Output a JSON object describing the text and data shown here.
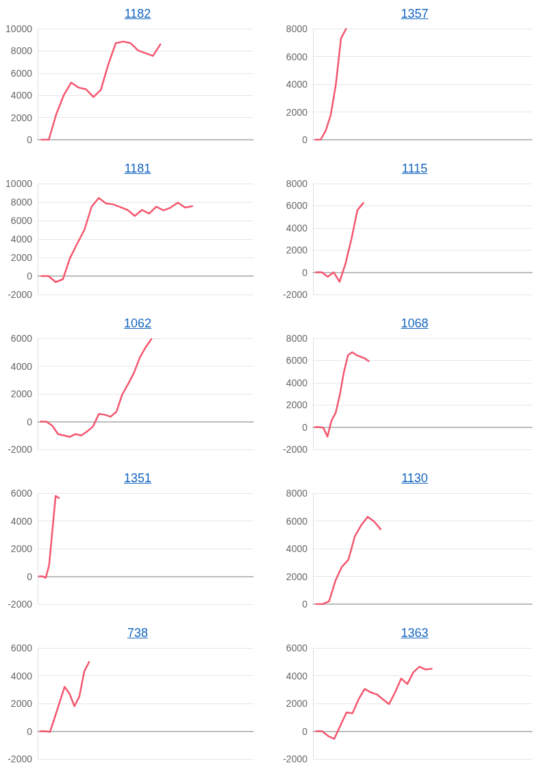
{
  "chart_data": [
    {
      "type": "line",
      "title": "1182",
      "color": "#f4566e",
      "grid": "y",
      "marker": "none",
      "line_style": "solid",
      "ylim": [
        0,
        10000
      ],
      "yticks": [
        0,
        2000,
        4000,
        6000,
        8000,
        10000
      ],
      "categories": [
        null,
        null,
        null,
        null,
        null,
        null,
        null,
        null,
        null,
        null,
        null,
        null,
        null,
        null,
        null,
        null,
        null,
        null,
        null,
        null,
        null,
        null,
        null,
        null,
        null,
        null,
        null,
        null,
        null
      ],
      "values": [
        0,
        0,
        2300,
        4000,
        5150,
        4700,
        4550,
        3850,
        4500,
        6800,
        8700,
        8850,
        8700,
        8050,
        7800,
        7550,
        8600,
        null,
        null,
        null,
        null,
        null,
        null,
        null,
        null,
        null,
        null,
        null,
        null
      ]
    },
    {
      "type": "line",
      "title": "1357",
      "color": "#f4566e",
      "grid": "y",
      "marker": "none",
      "line_style": "solid",
      "ylim": [
        0,
        8000
      ],
      "yticks": [
        0,
        2000,
        4000,
        6000,
        8000
      ],
      "categories": [
        null,
        null,
        null,
        null,
        null,
        null,
        null,
        null,
        null,
        null,
        null,
        null,
        null,
        null,
        null,
        null,
        null,
        null,
        null,
        null,
        null,
        null,
        null,
        null,
        null,
        null,
        null,
        null,
        null,
        null,
        null,
        null,
        null,
        null,
        null,
        null,
        null,
        null,
        null,
        null,
        null,
        null,
        null
      ],
      "values": [
        0,
        0,
        650,
        1800,
        4000,
        7300,
        8000,
        null,
        null,
        null,
        null,
        null,
        null,
        null,
        null,
        null,
        null,
        null,
        null,
        null,
        null,
        null,
        null,
        null,
        null,
        null,
        null,
        null,
        null,
        null,
        null,
        null,
        null,
        null,
        null,
        null,
        null,
        null,
        null,
        null,
        null,
        null,
        null
      ]
    },
    {
      "type": "line",
      "title": "1181",
      "color": "#f4566e",
      "grid": "y",
      "marker": "none",
      "line_style": "solid",
      "ylim": [
        -2000,
        10000
      ],
      "yticks": [
        -2000,
        0,
        2000,
        4000,
        6000,
        8000,
        10000
      ],
      "categories": [
        null,
        null,
        null,
        null,
        null,
        null,
        null,
        null,
        null,
        null,
        null,
        null,
        null,
        null,
        null,
        null,
        null,
        null,
        null,
        null,
        null,
        null,
        null,
        null,
        null,
        null,
        null,
        null,
        null,
        null
      ],
      "values": [
        0,
        0,
        -650,
        -350,
        1950,
        3500,
        5000,
        7500,
        8450,
        7850,
        7750,
        7450,
        7150,
        6500,
        7150,
        6750,
        7500,
        7100,
        7400,
        7950,
        7400,
        7550,
        null,
        null,
        null,
        null,
        null,
        null,
        null,
        null
      ]
    },
    {
      "type": "line",
      "title": "1115",
      "color": "#f4566e",
      "grid": "y",
      "marker": "none",
      "line_style": "solid",
      "ylim": [
        -2000,
        8000
      ],
      "yticks": [
        -2000,
        0,
        2000,
        4000,
        6000,
        8000
      ],
      "categories": [
        null,
        null,
        null,
        null,
        null,
        null,
        null,
        null,
        null,
        null,
        null,
        null,
        null,
        null,
        null,
        null,
        null,
        null,
        null,
        null,
        null,
        null,
        null,
        null,
        null,
        null,
        null,
        null,
        null,
        null,
        null,
        null,
        null,
        null,
        null,
        null,
        null
      ],
      "values": [
        0,
        0,
        -400,
        0,
        -850,
        800,
        3000,
        5600,
        6250,
        null,
        null,
        null,
        null,
        null,
        null,
        null,
        null,
        null,
        null,
        null,
        null,
        null,
        null,
        null,
        null,
        null,
        null,
        null,
        null,
        null,
        null,
        null,
        null,
        null,
        null,
        null,
        null
      ]
    },
    {
      "type": "line",
      "title": "1062",
      "color": "#f4566e",
      "grid": "y",
      "marker": "none",
      "line_style": "solid",
      "ylim": [
        -2000,
        6000
      ],
      "yticks": [
        -2000,
        0,
        2000,
        4000,
        6000
      ],
      "categories": [
        null,
        null,
        null,
        null,
        null,
        null,
        null,
        null,
        null,
        null,
        null,
        null,
        null,
        null,
        null,
        null,
        null,
        null,
        null,
        null,
        null,
        null,
        null,
        null,
        null,
        null,
        null,
        null,
        null,
        null,
        null,
        null,
        null,
        null,
        null,
        null,
        null
      ],
      "values": [
        0,
        0,
        -300,
        -900,
        -1000,
        -1100,
        -900,
        -1000,
        -700,
        -350,
        550,
        500,
        350,
        700,
        1950,
        2700,
        3500,
        4600,
        5350,
        5950,
        null,
        null,
        null,
        null,
        null,
        null,
        null,
        null,
        null,
        null,
        null,
        null,
        null,
        null,
        null,
        null,
        null
      ]
    },
    {
      "type": "line",
      "title": "1068",
      "color": "#f4566e",
      "grid": "y",
      "marker": "none",
      "line_style": "solid",
      "ylim": [
        -2000,
        8000
      ],
      "yticks": [
        -2000,
        0,
        2000,
        4000,
        6000,
        8000
      ],
      "categories": [
        null,
        null,
        null,
        null,
        null,
        null,
        null,
        null,
        null,
        null,
        null,
        null,
        null,
        null,
        null,
        null,
        null,
        null,
        null,
        null,
        null,
        null,
        null,
        null,
        null,
        null,
        null,
        null,
        null,
        null,
        null,
        null,
        null,
        null,
        null,
        null,
        null,
        null,
        null,
        null,
        null,
        null,
        null,
        null,
        null,
        null,
        null,
        null,
        null,
        null,
        null,
        null,
        null
      ],
      "values": [
        0,
        0,
        -50,
        -850,
        600,
        1300,
        2900,
        5000,
        6500,
        6750,
        6500,
        6350,
        6200,
        5950,
        null,
        null,
        null,
        null,
        null,
        null,
        null,
        null,
        null,
        null,
        null,
        null,
        null,
        null,
        null,
        null,
        null,
        null,
        null,
        null,
        null,
        null,
        null,
        null,
        null,
        null,
        null,
        null,
        null,
        null,
        null,
        null,
        null,
        null,
        null,
        null,
        null,
        null,
        null
      ]
    },
    {
      "type": "line",
      "title": "1351",
      "color": "#f4566e",
      "grid": "y",
      "marker": "none",
      "line_style": "solid",
      "ylim": [
        -2000,
        6000
      ],
      "yticks": [
        -2000,
        0,
        2000,
        4000,
        6000
      ],
      "categories": [
        null,
        null,
        null,
        null,
        null,
        null,
        null,
        null,
        null,
        null,
        null,
        null,
        null,
        null,
        null,
        null,
        null,
        null,
        null,
        null,
        null,
        null,
        null,
        null,
        null,
        null,
        null,
        null,
        null,
        null,
        null,
        null,
        null,
        null,
        null,
        null,
        null,
        null,
        null,
        null,
        null,
        null,
        null,
        null,
        null,
        null,
        null,
        null,
        null,
        null,
        null,
        null,
        null,
        null,
        null,
        null,
        null,
        null,
        null,
        null,
        null,
        null,
        null,
        null,
        null,
        null
      ],
      "values": [
        0,
        0,
        -100,
        800,
        3300,
        5800,
        5650,
        null,
        null,
        null,
        null,
        null,
        null,
        null,
        null,
        null,
        null,
        null,
        null,
        null,
        null,
        null,
        null,
        null,
        null,
        null,
        null,
        null,
        null,
        null,
        null,
        null,
        null,
        null,
        null,
        null,
        null,
        null,
        null,
        null,
        null,
        null,
        null,
        null,
        null,
        null,
        null,
        null,
        null,
        null,
        null,
        null,
        null,
        null,
        null,
        null,
        null,
        null,
        null,
        null,
        null,
        null,
        null,
        null,
        null,
        null
      ]
    },
    {
      "type": "line",
      "title": "1130",
      "color": "#f4566e",
      "grid": "y",
      "marker": "none",
      "line_style": "solid",
      "ylim": [
        0,
        8000
      ],
      "yticks": [
        0,
        2000,
        4000,
        6000,
        8000
      ],
      "categories": [
        null,
        null,
        null,
        null,
        null,
        null,
        null,
        null,
        null,
        null,
        null,
        null,
        null,
        null,
        null,
        null,
        null,
        null,
        null,
        null,
        null,
        null,
        null,
        null,
        null,
        null,
        null,
        null,
        null,
        null,
        null,
        null,
        null,
        null
      ],
      "values": [
        0,
        0,
        200,
        1700,
        2700,
        3200,
        4900,
        5700,
        6300,
        5950,
        5400,
        null,
        null,
        null,
        null,
        null,
        null,
        null,
        null,
        null,
        null,
        null,
        null,
        null,
        null,
        null,
        null,
        null,
        null,
        null,
        null,
        null,
        null,
        null
      ]
    },
    {
      "type": "line",
      "title": "738",
      "color": "#f4566e",
      "grid": "y",
      "marker": "none",
      "line_style": "solid",
      "ylim": [
        -2000,
        6000
      ],
      "yticks": [
        -2000,
        0,
        2000,
        4000,
        6000
      ],
      "categories": [
        null,
        null,
        null,
        null,
        null,
        null,
        null,
        null,
        null,
        null,
        null,
        null,
        null,
        null,
        null,
        null,
        null,
        null,
        null,
        null,
        null,
        null,
        null,
        null,
        null,
        null,
        null,
        null,
        null,
        null,
        null,
        null,
        null,
        null,
        null,
        null,
        null,
        null,
        null,
        null,
        null,
        null,
        null,
        null
      ],
      "values": [
        0,
        0,
        -50,
        1000,
        2100,
        3200,
        2700,
        1800,
        2500,
        4300,
        5000,
        null,
        null,
        null,
        null,
        null,
        null,
        null,
        null,
        null,
        null,
        null,
        null,
        null,
        null,
        null,
        null,
        null,
        null,
        null,
        null,
        null,
        null,
        null,
        null,
        null,
        null,
        null,
        null,
        null,
        null,
        null,
        null,
        null
      ]
    },
    {
      "type": "line",
      "title": "1363",
      "color": "#f4566e",
      "grid": "y",
      "marker": "none",
      "line_style": "solid",
      "ylim": [
        -2000,
        6000
      ],
      "yticks": [
        -2000,
        0,
        2000,
        4000,
        6000
      ],
      "categories": [
        null,
        null,
        null,
        null,
        null,
        null,
        null,
        null,
        null,
        null,
        null,
        null,
        null,
        null,
        null,
        null,
        null,
        null,
        null,
        null,
        null,
        null,
        null,
        null,
        null,
        null,
        null,
        null,
        null,
        null,
        null,
        null,
        null,
        null,
        null,
        null
      ],
      "values": [
        0,
        0,
        -350,
        -550,
        400,
        1350,
        1300,
        2300,
        3050,
        2800,
        2650,
        2300,
        1950,
        2800,
        3800,
        3400,
        4250,
        4650,
        4450,
        4500,
        null,
        null,
        null,
        null,
        null,
        null,
        null,
        null,
        null,
        null,
        null,
        null,
        null,
        null,
        null,
        null
      ]
    }
  ]
}
